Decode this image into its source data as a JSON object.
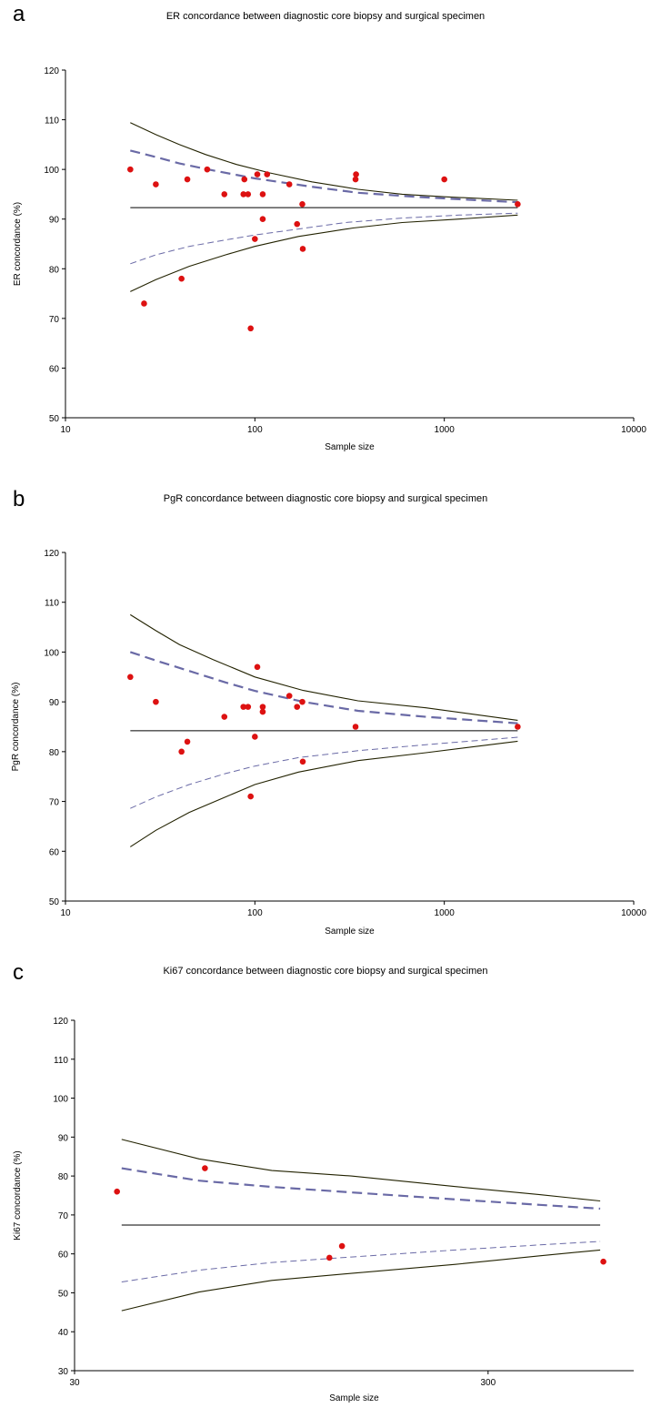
{
  "chart_data": [
    {
      "panel": "a",
      "type": "scatter",
      "title": "ER concordance between diagnostic core biopsy and surgical specimen",
      "xlabel": "Sample size",
      "ylabel": "ER concordance (%)",
      "xscale": "log",
      "xlim": [
        10,
        10000
      ],
      "ylim": [
        50,
        120
      ],
      "x_ticks": [
        "10",
        "100",
        "1000",
        "10000"
      ],
      "y_ticks": [
        "50",
        "60",
        "70",
        "80",
        "90",
        "100",
        "110",
        "120"
      ],
      "grid": false,
      "legend": "none",
      "colors": {
        "points": "#dd1111",
        "limits": "#222200",
        "mean": "#000000",
        "dashed": "#6a6aa6"
      },
      "points": [
        [
          22,
          100
        ],
        [
          26,
          73
        ],
        [
          30,
          97
        ],
        [
          41,
          78
        ],
        [
          44,
          98
        ],
        [
          56,
          100
        ],
        [
          69,
          95
        ],
        [
          87,
          95
        ],
        [
          88,
          98
        ],
        [
          92,
          95
        ],
        [
          95,
          68
        ],
        [
          100,
          86
        ],
        [
          103,
          99
        ],
        [
          110,
          90
        ],
        [
          110,
          95
        ],
        [
          116,
          99
        ],
        [
          152,
          97
        ],
        [
          167,
          89
        ],
        [
          178,
          93
        ],
        [
          179,
          84
        ],
        [
          340,
          98
        ],
        [
          342,
          99
        ],
        [
          1000,
          98
        ],
        [
          2440,
          93
        ]
      ],
      "mean_line": {
        "y": 92.3,
        "x": [
          22,
          2440
        ]
      },
      "upper_solid": [
        [
          22,
          109.4
        ],
        [
          30,
          107
        ],
        [
          40,
          105
        ],
        [
          55,
          103
        ],
        [
          80,
          101
        ],
        [
          120,
          99.3
        ],
        [
          200,
          97.5
        ],
        [
          350,
          96
        ],
        [
          600,
          95
        ],
        [
          1000,
          94.5
        ],
        [
          2440,
          93.8
        ]
      ],
      "upper_dashed": [
        [
          22,
          103.8
        ],
        [
          30,
          102.5
        ],
        [
          40,
          101.2
        ],
        [
          60,
          99.8
        ],
        [
          100,
          98.2
        ],
        [
          200,
          96.5
        ],
        [
          350,
          95.3
        ],
        [
          700,
          94.5
        ],
        [
          1200,
          94
        ],
        [
          2440,
          93.4
        ]
      ],
      "lower_dashed": [
        [
          22,
          81
        ],
        [
          30,
          82.8
        ],
        [
          45,
          84.5
        ],
        [
          70,
          85.8
        ],
        [
          100,
          86.8
        ],
        [
          170,
          88
        ],
        [
          300,
          89.3
        ],
        [
          600,
          90.2
        ],
        [
          1200,
          90.8
        ],
        [
          2440,
          91.2
        ]
      ],
      "lower_solid": [
        [
          22,
          75.4
        ],
        [
          30,
          77.8
        ],
        [
          45,
          80.5
        ],
        [
          70,
          82.8
        ],
        [
          100,
          84.5
        ],
        [
          170,
          86.5
        ],
        [
          330,
          88.2
        ],
        [
          600,
          89.3
        ],
        [
          1200,
          90
        ],
        [
          2440,
          90.8
        ]
      ]
    },
    {
      "panel": "b",
      "type": "scatter",
      "title": "PgR concordance between diagnostic core biopsy and surgical specimen",
      "xlabel": "Sample size",
      "ylabel": "PgR concordance (%)",
      "xscale": "log",
      "xlim": [
        10,
        10000
      ],
      "ylim": [
        50,
        120
      ],
      "x_ticks": [
        "10",
        "100",
        "1000",
        "10000"
      ],
      "y_ticks": [
        "50",
        "60",
        "70",
        "80",
        "90",
        "100",
        "110",
        "120"
      ],
      "grid": false,
      "legend": "none",
      "colors": {
        "points": "#dd1111",
        "limits": "#222200",
        "mean": "#000000",
        "dashed": "#6a6aa6"
      },
      "points": [
        [
          22,
          95
        ],
        [
          30,
          90
        ],
        [
          41,
          80
        ],
        [
          44,
          82
        ],
        [
          69,
          87
        ],
        [
          87,
          89
        ],
        [
          92,
          89
        ],
        [
          95,
          71
        ],
        [
          100,
          83
        ],
        [
          103,
          97
        ],
        [
          110,
          88
        ],
        [
          110,
          89
        ],
        [
          152,
          91.2
        ],
        [
          167,
          89
        ],
        [
          178,
          90
        ],
        [
          179,
          78
        ],
        [
          340,
          85
        ],
        [
          2440,
          85
        ]
      ],
      "mean_line": {
        "y": 84.2,
        "x": [
          22,
          2440
        ]
      },
      "upper_solid": [
        [
          22,
          107.5
        ],
        [
          30,
          104.3
        ],
        [
          40,
          101.5
        ],
        [
          60,
          98.5
        ],
        [
          100,
          95
        ],
        [
          180,
          92.3
        ],
        [
          350,
          90.2
        ],
        [
          800,
          88.8
        ],
        [
          2440,
          86.3
        ]
      ],
      "upper_dashed": [
        [
          22,
          100
        ],
        [
          30,
          98.3
        ],
        [
          45,
          96.2
        ],
        [
          70,
          93.9
        ],
        [
          100,
          92.2
        ],
        [
          180,
          90
        ],
        [
          350,
          88.2
        ],
        [
          800,
          87
        ],
        [
          2440,
          85.7
        ]
      ],
      "lower_dashed": [
        [
          22,
          68.6
        ],
        [
          30,
          70.9
        ],
        [
          45,
          73.4
        ],
        [
          70,
          75.6
        ],
        [
          100,
          77.1
        ],
        [
          170,
          78.8
        ],
        [
          350,
          80.2
        ],
        [
          800,
          81.4
        ],
        [
          2440,
          82.9
        ]
      ],
      "lower_solid": [
        [
          22,
          60.9
        ],
        [
          30,
          64.2
        ],
        [
          45,
          67.8
        ],
        [
          70,
          70.9
        ],
        [
          100,
          73.4
        ],
        [
          170,
          75.9
        ],
        [
          350,
          78.2
        ],
        [
          800,
          79.8
        ],
        [
          2440,
          82.1
        ]
      ]
    },
    {
      "panel": "c",
      "type": "scatter",
      "title": "Ki67 concordance between diagnostic core biopsy and surgical specimen",
      "xlabel": "Sample size",
      "ylabel": "Ki67 concordance (%)",
      "xscale": "log",
      "xlim": [
        30,
        675
      ],
      "ylim": [
        30,
        120
      ],
      "x_ticks": [
        "30",
        "300"
      ],
      "y_ticks": [
        "30",
        "40",
        "50",
        "60",
        "70",
        "80",
        "90",
        "100",
        "110",
        "120"
      ],
      "grid": false,
      "legend": "none",
      "colors": {
        "points": "#dd1111",
        "limits": "#222200",
        "mean": "#000000",
        "dashed": "#6a6aa6"
      },
      "points": [
        [
          38,
          76
        ],
        [
          62,
          82
        ],
        [
          124,
          59
        ],
        [
          133,
          62
        ],
        [
          570,
          58
        ]
      ],
      "mean_line": {
        "y": 67.4,
        "x": [
          39,
          560
        ]
      },
      "upper_solid": [
        [
          39,
          89.4
        ],
        [
          60,
          84.4
        ],
        [
          90,
          81.4
        ],
        [
          140,
          80
        ],
        [
          250,
          77.3
        ],
        [
          400,
          75.2
        ],
        [
          560,
          73.6
        ]
      ],
      "upper_dashed": [
        [
          39,
          82
        ],
        [
          60,
          78.8
        ],
        [
          90,
          77.2
        ],
        [
          140,
          75.8
        ],
        [
          250,
          74
        ],
        [
          400,
          72.6
        ],
        [
          560,
          71.6
        ]
      ],
      "lower_dashed": [
        [
          39,
          52.8
        ],
        [
          60,
          55.8
        ],
        [
          90,
          57.8
        ],
        [
          140,
          59.2
        ],
        [
          250,
          61
        ],
        [
          400,
          62.3
        ],
        [
          560,
          63.2
        ]
      ],
      "lower_solid": [
        [
          39,
          45.4
        ],
        [
          60,
          50.2
        ],
        [
          90,
          53.2
        ],
        [
          140,
          55
        ],
        [
          250,
          57.3
        ],
        [
          400,
          59.5
        ],
        [
          560,
          61
        ]
      ]
    }
  ],
  "panels": {
    "a": {
      "letter": "a"
    },
    "b": {
      "letter": "b"
    },
    "c": {
      "letter": "c"
    }
  }
}
